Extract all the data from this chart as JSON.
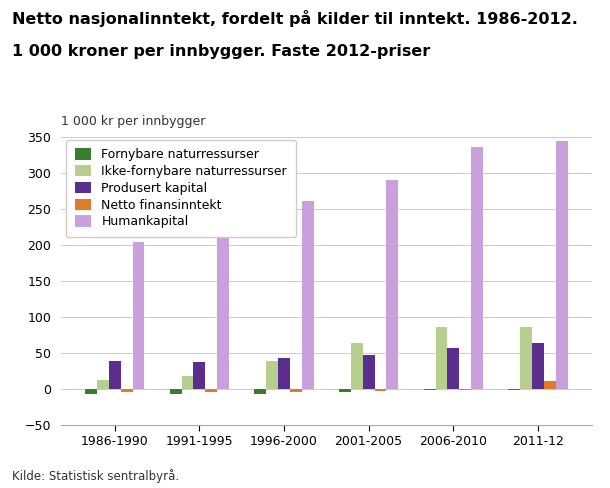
{
  "title_line1": "Netto nasjonalinntekt, fordelt på kilder til inntekt. 1986-2012.",
  "title_line2": "1 000 kroner per innbygger. Faste 2012-priser",
  "ylabel": "1 000 kr per innbygger",
  "xlabel_source": "Kilde: Statistisk sentralbyrå.",
  "categories": [
    "1986-1990",
    "1991-1995",
    "1996-2000",
    "2001-2005",
    "2006-2010",
    "2011-12"
  ],
  "series": {
    "Fornybare naturressurser": {
      "values": [
        -8,
        -8,
        -8,
        -5,
        -2,
        -2
      ],
      "color": "#3a7d2c"
    },
    "Ikke-fornybare naturressurser": {
      "values": [
        12,
        18,
        38,
        63,
        86,
        86
      ],
      "color": "#b5cf8f"
    },
    "Produsert kapital": {
      "values": [
        38,
        37,
        42,
        46,
        57,
        64
      ],
      "color": "#5b2d8e"
    },
    "Netto finansinntekt": {
      "values": [
        -5,
        -5,
        -5,
        -3,
        -2,
        11
      ],
      "color": "#e07b2a"
    },
    "Humankapital": {
      "values": [
        204,
        217,
        260,
        290,
        335,
        344
      ],
      "color": "#c9a0dc"
    }
  },
  "ylim": [
    -50,
    350
  ],
  "yticks": [
    -50,
    0,
    50,
    100,
    150,
    200,
    250,
    300,
    350
  ],
  "background_color": "#ffffff",
  "grid_color": "#cccccc",
  "bar_width": 0.14,
  "title_fontsize": 11.5,
  "legend_fontsize": 9,
  "tick_fontsize": 9,
  "ylabel_fontsize": 9
}
